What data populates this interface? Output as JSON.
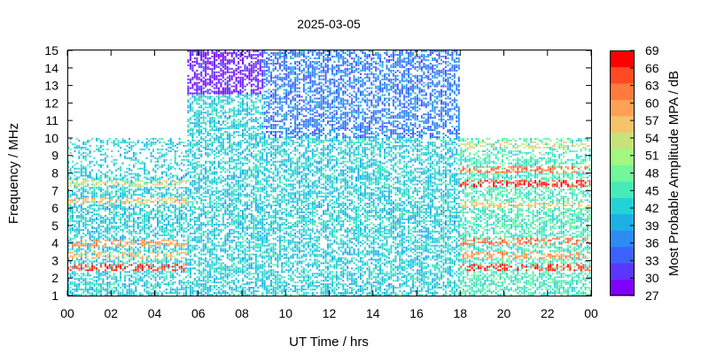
{
  "chart_data": {
    "type": "heatmap",
    "title": "2025-03-05",
    "xlabel": "UT Time / hrs",
    "ylabel": "Frequency / MHz",
    "colorbar_label": "Most Probable Amplitude MPA / dB",
    "xlim": [
      0,
      24
    ],
    "ylim": [
      1,
      15
    ],
    "x_tick_labels": [
      "00",
      "02",
      "04",
      "06",
      "08",
      "10",
      "12",
      "14",
      "16",
      "18",
      "20",
      "22",
      "00"
    ],
    "y_tick_labels": [
      "1",
      "2",
      "3",
      "4",
      "5",
      "6",
      "7",
      "8",
      "9",
      "10",
      "11",
      "12",
      "13",
      "14",
      "15"
    ],
    "colorbar": {
      "min": 27,
      "max": 69,
      "tick_labels": [
        "27",
        "30",
        "33",
        "36",
        "39",
        "42",
        "45",
        "48",
        "51",
        "54",
        "57",
        "60",
        "63",
        "66",
        "69"
      ],
      "colors": [
        "#8000ff",
        "#5a36ff",
        "#3b62fc",
        "#2b8cf2",
        "#1cb0e6",
        "#23d2d6",
        "#48eab7",
        "#72f89a",
        "#a2f880",
        "#c8e27a",
        "#f4c36a",
        "#ffa054",
        "#ff7a3d",
        "#ff4a22",
        "#ff0000"
      ]
    },
    "grid": false,
    "regions_approx_mpa_db": [
      {
        "x": [
          0,
          5.5
        ],
        "y": [
          1,
          10
        ],
        "dominant": 42,
        "bands": [
          {
            "y": 2.6,
            "value": 66
          },
          {
            "y": 3.3,
            "value": 57
          },
          {
            "y": 4.0,
            "value": 60
          },
          {
            "y": 6.4,
            "value": 57
          },
          {
            "y": 7.4,
            "value": 54
          }
        ]
      },
      {
        "x": [
          5.5,
          9
        ],
        "y": [
          1,
          15
        ],
        "dominant": 42,
        "upper_values": 30
      },
      {
        "x": [
          9,
          18
        ],
        "y": [
          10,
          15
        ],
        "dominant": 36
      },
      {
        "x": [
          9,
          18
        ],
        "y": [
          1,
          10
        ],
        "dominant": 42
      },
      {
        "x": [
          18,
          24
        ],
        "y": [
          1,
          10
        ],
        "dominant": 45,
        "bands": [
          {
            "y": 2.6,
            "value": 66
          },
          {
            "y": 3.3,
            "value": 60
          },
          {
            "y": 4.1,
            "value": 63
          },
          {
            "y": 6.2,
            "value": 57
          },
          {
            "y": 7.4,
            "value": 66
          },
          {
            "y": 8.2,
            "value": 63
          },
          {
            "y": 9.6,
            "value": 54
          }
        ]
      }
    ]
  }
}
